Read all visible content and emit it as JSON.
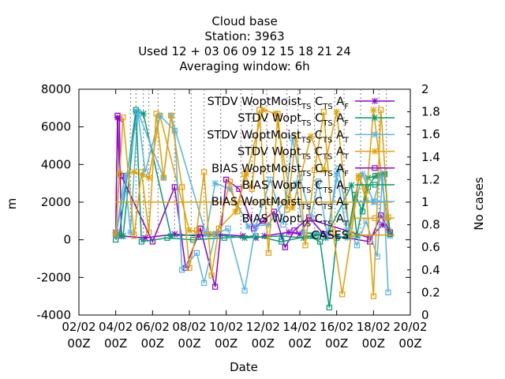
{
  "chart_data": {
    "type": "line",
    "title_lines": [
      "Cloud base",
      "Station:      3963",
      "Used  12 + 03 06 09 12 15 18 21 24",
      "Averaging window:  6h"
    ],
    "xlabel": "Date",
    "ylabel": "m",
    "y2label": "No cases",
    "xlim": [
      0,
      18
    ],
    "ylim": [
      -4000,
      8000
    ],
    "y2lim": [
      0,
      2
    ],
    "x_ticks": [
      {
        "l1": "02/02",
        "l2": "00Z"
      },
      {
        "l1": "04/02",
        "l2": "00Z"
      },
      {
        "l1": "06/02",
        "l2": "00Z"
      },
      {
        "l1": "08/02",
        "l2": "00Z"
      },
      {
        "l1": "10/02",
        "l2": "00Z"
      },
      {
        "l1": "12/02",
        "l2": "00Z"
      },
      {
        "l1": "14/02",
        "l2": "00Z"
      },
      {
        "l1": "16/02",
        "l2": "00Z"
      },
      {
        "l1": "18/02",
        "l2": "00Z"
      },
      {
        "l1": "20/02",
        "l2": "00Z"
      }
    ],
    "y_ticks": [
      "-4000",
      "-2000",
      "0",
      "2000",
      "4000",
      "6000",
      "8000"
    ],
    "y2_ticks": [
      "0",
      "0.2",
      "0.4",
      "0.6",
      "0.8",
      "1",
      "1.2",
      "1.4",
      "1.6",
      "1.8",
      "2"
    ],
    "series": [
      {
        "name": "STDV WoptMoist",
        "color": "#9400d3",
        "marker": "x",
        "x": [
          2.0,
          2.1,
          2.2,
          2.3,
          3.6,
          5.2,
          6.5,
          7.5,
          8.9,
          9.6,
          10.1,
          11.4,
          12.0,
          12.5,
          15.8,
          16.5,
          16.9
        ],
        "y": [
          400,
          6500,
          6400,
          200,
          100,
          300,
          200,
          300,
          200,
          100,
          200,
          400,
          300,
          1100,
          100,
          800,
          300
        ]
      },
      {
        "name": "STDV Wopt",
        "color": "#009e73",
        "marker": "x",
        "x": [
          2.0,
          2.4,
          3.1,
          3.5,
          5.0,
          7.0,
          9.0,
          11.0,
          12.2,
          12.7,
          13.0,
          13.4,
          14.8,
          15.1,
          15.7,
          16.2,
          16.6
        ],
        "y": [
          200,
          200,
          6800,
          6700,
          200,
          300,
          100,
          200,
          100,
          200,
          300,
          100,
          2900,
          200,
          3300,
          3400,
          3500
        ]
      },
      {
        "name": "STDV WoptMoist",
        "color": "#56b4e9",
        "marker": "x",
        "x": [
          2.0,
          2.5,
          2.8,
          3.2,
          4.6,
          5.0,
          6.9,
          7.4,
          8.2,
          9.2,
          10.3,
          11.8,
          12.2,
          13.5,
          14.0,
          14.6,
          15.4,
          16.0,
          16.4,
          16.9
        ],
        "y": [
          300,
          3400,
          400,
          6800,
          3300,
          6600,
          300,
          3000,
          2700,
          700,
          800,
          3000,
          400,
          300,
          3500,
          100,
          3500,
          2000,
          3400,
          200
        ]
      },
      {
        "name": "STDV Wopt",
        "color": "#e69f00",
        "marker": "x",
        "x": [
          2.0,
          2.2,
          3.0,
          3.8,
          4.4,
          6.0,
          7.3,
          8.5,
          9.1,
          10.0,
          10.7,
          11.6,
          12.6,
          13.3,
          14.0,
          14.7,
          15.2,
          15.6,
          16.0,
          16.8
        ],
        "y": [
          300,
          3500,
          3600,
          3300,
          6600,
          500,
          300,
          1500,
          3500,
          6900,
          6700,
          1700,
          5500,
          3700,
          6800,
          300,
          3400,
          2100,
          6900,
          500
        ]
      },
      {
        "name": "BIAS WoptMoist",
        "color": "#9400d3",
        "marker": "sq",
        "x": [
          2.0,
          2.1,
          2.2,
          2.3,
          4.0,
          5.2,
          5.8,
          6.6,
          7.4,
          8.0,
          8.7,
          9.5,
          10.0,
          10.6,
          11.2,
          11.7,
          12.5,
          13.3,
          15.8,
          16.4,
          16.9
        ],
        "y": [
          300,
          6600,
          3500,
          3400,
          -100,
          2800,
          -1500,
          600,
          -2500,
          3200,
          2700,
          600,
          1000,
          1500,
          -400,
          500,
          1200,
          300,
          -100,
          1300,
          400
        ]
      },
      {
        "name": "BIAS Wopt",
        "color": "#009e73",
        "marker": "sq",
        "x": [
          2.0,
          2.2,
          3.1,
          3.4,
          4.8,
          6.2,
          7.9,
          9.6,
          11.0,
          12.5,
          13.1,
          13.6,
          14.0,
          14.6,
          15.0,
          15.4,
          15.7,
          16.1,
          16.6,
          16.9
        ],
        "y": [
          0,
          300,
          6900,
          -100,
          100,
          0,
          100,
          200,
          -100,
          200,
          -100,
          -3600,
          100,
          200,
          2400,
          1500,
          2800,
          3400,
          3500,
          300
        ]
      },
      {
        "name": "BIAS WoptMoist",
        "color": "#56b4e9",
        "marker": "sq",
        "x": [
          2.0,
          2.6,
          3.2,
          3.6,
          4.4,
          5.2,
          5.6,
          6.4,
          6.8,
          7.4,
          8.1,
          9.0,
          9.6,
          10.4,
          11.1,
          11.6,
          12.0,
          12.6,
          13.0,
          13.5,
          14.1,
          14.7,
          15.1,
          15.6,
          16.2,
          16.5,
          16.8
        ],
        "y": [
          200,
          3400,
          6800,
          3600,
          6600,
          5800,
          -1600,
          -700,
          -2300,
          300,
          600,
          -2700,
          700,
          3200,
          800,
          5400,
          3300,
          1200,
          3100,
          200,
          3800,
          500,
          -300,
          1000,
          -900,
          3500,
          -2800
        ]
      },
      {
        "name": "BIAS Wopt",
        "color": "#e69f00",
        "marker": "sq",
        "x": [
          2.0,
          2.2,
          2.4,
          3.0,
          3.4,
          3.8,
          4.2,
          4.6,
          5.0,
          5.6,
          6.0,
          6.4,
          6.8,
          7.2,
          7.6,
          8.2,
          8.6,
          9.0,
          9.4,
          9.8,
          10.3,
          10.8,
          11.3,
          11.8,
          12.3,
          12.8,
          13.3,
          13.8,
          14.3,
          14.8,
          15.2,
          15.6,
          16.0,
          16.4,
          16.8
        ],
        "y": [
          300,
          3500,
          6500,
          200,
          3600,
          400,
          6700,
          3300,
          6600,
          2800,
          -1500,
          500,
          3600,
          -1900,
          600,
          3100,
          1500,
          3500,
          2700,
          6900,
          -700,
          6700,
          1600,
          5500,
          -300,
          3700,
          6800,
          400,
          -2900,
          300,
          3300,
          2600,
          -3000,
          6900,
          1200
        ]
      },
      {
        "name": "CASES",
        "color": "#e69f00",
        "marker": "none",
        "y2_constant": 1
      }
    ],
    "legend_items": [
      {
        "label": "STDV WoptMoist",
        "sub": "TS",
        "mid": "C",
        "sub2": "TS",
        "end": "A",
        "endsub": "F",
        "color": "#9400d3",
        "marker": "x"
      },
      {
        "label": "STDV Wopt",
        "sub": "TS",
        "mid": "C",
        "sub2": "TS",
        "end": "A",
        "endsub": "F",
        "color": "#009e73",
        "marker": "x"
      },
      {
        "label": "STDV WoptMoist",
        "sub": "TS",
        "mid": "C",
        "sub2": "TS",
        "end": "A",
        "endsub": "T",
        "color": "#56b4e9",
        "marker": "x"
      },
      {
        "label": "STDV Wopt",
        "sub": "TS",
        "mid": "C",
        "sub2": "TS",
        "end": "A",
        "endsub": "T",
        "color": "#e69f00",
        "marker": "x"
      },
      {
        "label": "BIAS WoptMoist",
        "sub": "TS",
        "mid": "C",
        "sub2": "TS",
        "end": "A",
        "endsub": "F",
        "color": "#9400d3",
        "marker": "sq"
      },
      {
        "label": "BIAS Wopt",
        "sub": "TS",
        "mid": "C",
        "sub2": "TS",
        "end": "A",
        "endsub": "F",
        "color": "#009e73",
        "marker": "sq"
      },
      {
        "label": "BIAS WoptMoist",
        "sub": "TS",
        "mid": "C",
        "sub2": "TS",
        "end": "A",
        "endsub": "T",
        "color": "#56b4e9",
        "marker": "sq"
      },
      {
        "label": "BIAS Wopt",
        "sub": "TS",
        "mid": "C",
        "sub2": "TS",
        "end": "A",
        "endsub": "T",
        "color": "#e69f00",
        "marker": "sq"
      },
      {
        "label": "CASES",
        "sub": "",
        "mid": "",
        "sub2": "",
        "end": "",
        "endsub": "",
        "color": "#e69f00",
        "marker": "none"
      }
    ],
    "grid": false,
    "legend_position": "top-right"
  }
}
